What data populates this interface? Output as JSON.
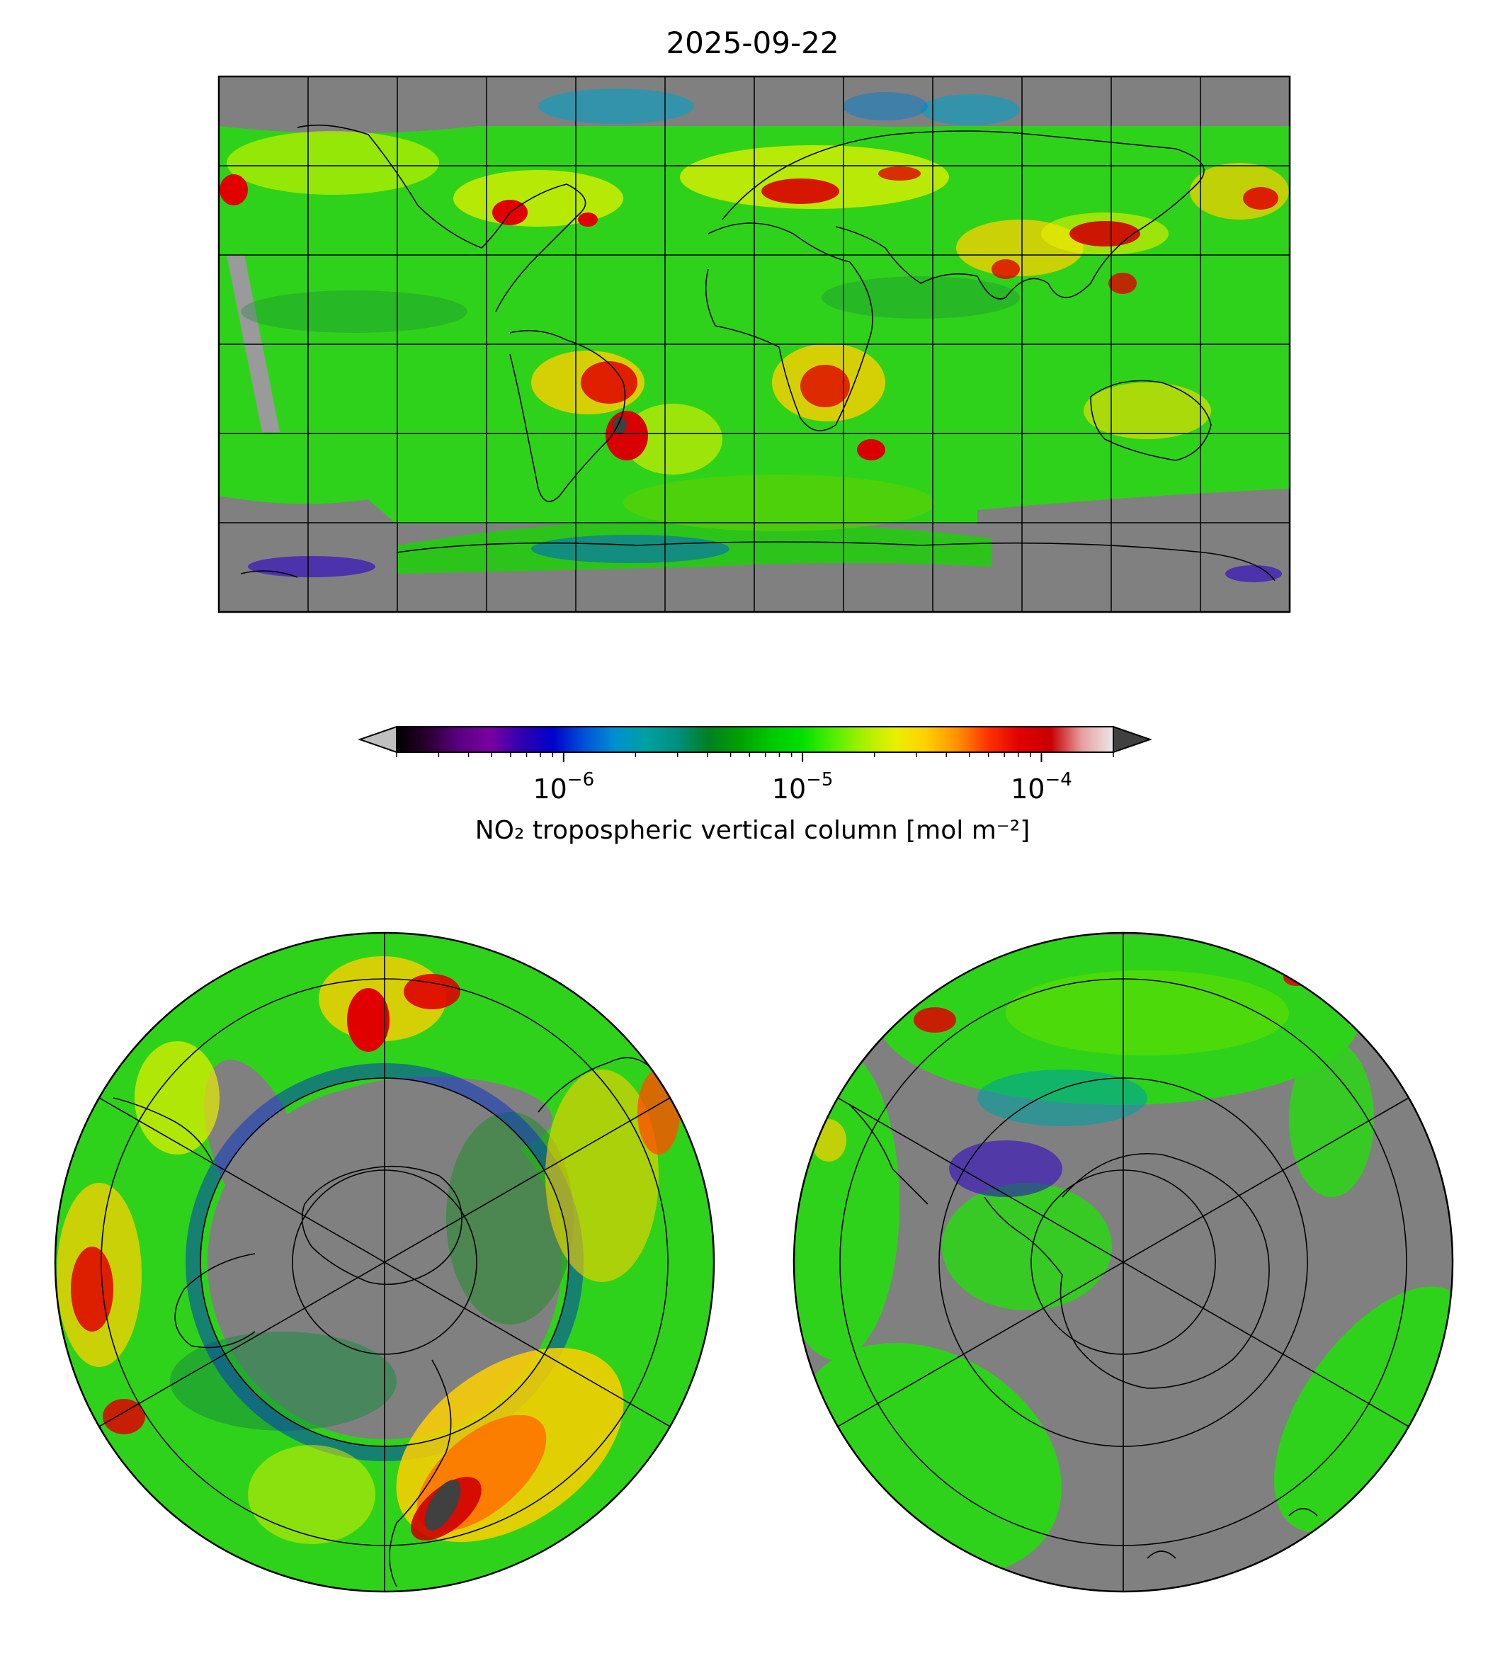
{
  "figure": {
    "title": "2025-09-22"
  },
  "colorbar": {
    "label": "NO₂ tropospheric vertical column [mol m⁻²]",
    "scale": "log",
    "range": [
      2e-07,
      0.0002
    ],
    "extend": "both",
    "ticks": [
      {
        "value": 1e-06,
        "base": "10",
        "exp": "−6"
      },
      {
        "value": 1e-05,
        "base": "10",
        "exp": "−5"
      },
      {
        "value": 0.0001,
        "base": "10",
        "exp": "−4"
      }
    ],
    "colors": [
      "#000000",
      "#2a0030",
      "#5a0080",
      "#7a00a0",
      "#3000b0",
      "#0000c8",
      "#0050d8",
      "#0090d0",
      "#00a0a0",
      "#009080",
      "#008020",
      "#00a000",
      "#00c800",
      "#00e000",
      "#50ee00",
      "#a8f000",
      "#e8f000",
      "#ffd000",
      "#ff9000",
      "#ff3000",
      "#e00000",
      "#c80000",
      "#e8a0a0",
      "#e8e8e8"
    ],
    "under_color": "#c0c0c0",
    "over_color": "#404040"
  },
  "panels": {
    "global": {
      "projection": "Plate Carrée",
      "nodata_color": "#808080",
      "gridlines": {
        "lon_step_deg": 30,
        "lat_step_deg": 30
      }
    },
    "north_polar": {
      "projection": "North Polar Stereographic",
      "nodata_color": "#808080"
    },
    "south_polar": {
      "projection": "South Polar Stereographic",
      "nodata_color": "#808080"
    }
  }
}
